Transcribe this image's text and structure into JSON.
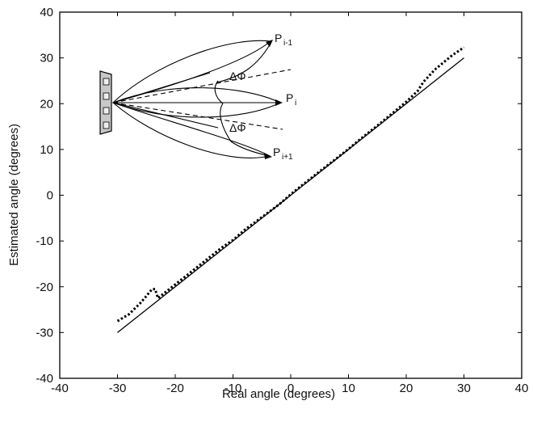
{
  "chart_data": {
    "type": "line",
    "title": "",
    "xlabel": "Real angle (degrees)",
    "ylabel": "Estimated angle  (degrees)",
    "xlim": [
      -40,
      40
    ],
    "ylim": [
      -40,
      40
    ],
    "xticks": [
      -40,
      -30,
      -20,
      -10,
      0,
      10,
      20,
      30,
      40
    ],
    "yticks": [
      -40,
      -30,
      -20,
      -10,
      0,
      10,
      20,
      30,
      40
    ],
    "grid": false,
    "series": [
      {
        "style": "solid",
        "x": [
          -30,
          30
        ],
        "y": [
          -30,
          30
        ]
      },
      {
        "style": "dotted",
        "x": [
          -30,
          -28,
          -26,
          -25,
          -24,
          -23.5,
          -23,
          -22,
          -20,
          -18,
          -15,
          -12,
          -10,
          -8,
          -5,
          -2,
          0,
          2,
          5,
          8,
          10,
          12,
          15,
          18,
          20,
          22,
          23,
          25,
          28,
          30
        ],
        "y": [
          -27.5,
          -26,
          -23.5,
          -22,
          -20.5,
          -20.5,
          -22.5,
          -21.5,
          -19.5,
          -17.5,
          -14.5,
          -11.5,
          -9.8,
          -7.6,
          -4.8,
          -2,
          0.2,
          2.2,
          5.2,
          8.1,
          10.1,
          12.2,
          15.2,
          18.3,
          20.4,
          22.8,
          24.8,
          27.5,
          30.6,
          32.3
        ]
      }
    ],
    "inset": {
      "labels": {
        "p_prev": "P",
        "p_prev_sub": "i-1",
        "p_cur": "P",
        "p_cur_sub": "i",
        "p_next": "P",
        "p_next_sub": "i+1",
        "delta_phi": "ΔΦ"
      }
    }
  }
}
